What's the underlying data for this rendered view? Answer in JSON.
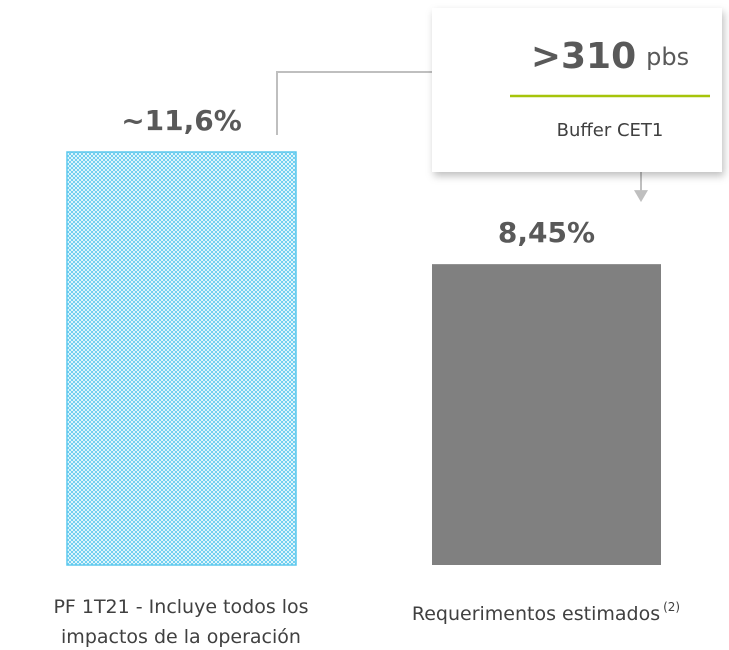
{
  "chart_data": {
    "type": "bar",
    "categories": [
      "PF 1T21 - Incluye todos los impactos de la operación",
      "Requerimentos estimados"
    ],
    "category_notes": [
      null,
      "(2)"
    ],
    "values": [
      11.6,
      8.45
    ],
    "value_labels": [
      "~11,6%",
      "8,45%"
    ],
    "colors": [
      "#5cc8ee",
      "#808080"
    ],
    "hatched": [
      true,
      false
    ],
    "annotation": {
      "value": ">310",
      "unit": "pbs",
      "text": "Buffer CET1",
      "line_color": "#a6c40a"
    }
  }
}
